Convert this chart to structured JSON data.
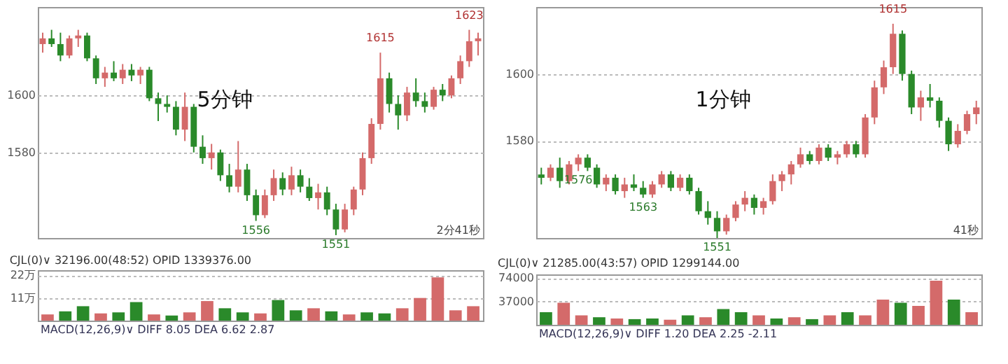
{
  "chart_data": [
    {
      "type": "candlestick",
      "categories": [
        null,
        null,
        null,
        null,
        null,
        null,
        null,
        null,
        null,
        null,
        null,
        null,
        null,
        null,
        null,
        null,
        null,
        null,
        null,
        null,
        null,
        null,
        null,
        null,
        null,
        null,
        null,
        null,
        null,
        null,
        null,
        null,
        null,
        null,
        null,
        null,
        null,
        null,
        null,
        null,
        null,
        null,
        null,
        null,
        null,
        null,
        null,
        null,
        null,
        null
      ],
      "ohlc": [
        [
          1618,
          1622,
          1615,
          1620
        ],
        [
          1620,
          1623,
          1617,
          1618
        ],
        [
          1618,
          1622,
          1612,
          1614
        ],
        [
          1614,
          1621,
          1613,
          1620
        ],
        [
          1620,
          1623,
          1617,
          1621
        ],
        [
          1621,
          1622,
          1612,
          1613
        ],
        [
          1613,
          1614,
          1604,
          1606
        ],
        [
          1606,
          1610,
          1603,
          1608
        ],
        [
          1608,
          1612,
          1605,
          1606
        ],
        [
          1606,
          1611,
          1604,
          1609
        ],
        [
          1609,
          1611,
          1605,
          1607
        ],
        [
          1607,
          1610,
          1604,
          1609
        ],
        [
          1609,
          1610,
          1598,
          1599
        ],
        [
          1599,
          1601,
          1591,
          1597
        ],
        [
          1597,
          1600,
          1594,
          1596
        ],
        [
          1596,
          1598,
          1586,
          1588
        ],
        [
          1588,
          1601,
          1584,
          1596
        ],
        [
          1596,
          1597,
          1580,
          1582
        ],
        [
          1582,
          1586,
          1576,
          1578
        ],
        [
          1578,
          1583,
          1574,
          1580
        ],
        [
          1580,
          1581,
          1570,
          1572
        ],
        [
          1572,
          1576,
          1566,
          1568
        ],
        [
          1568,
          1584,
          1566,
          1574
        ],
        [
          1574,
          1576,
          1563,
          1565
        ],
        [
          1565,
          1567,
          1556,
          1558
        ],
        [
          1558,
          1567,
          1557,
          1565
        ],
        [
          1565,
          1574,
          1563,
          1571
        ],
        [
          1571,
          1573,
          1565,
          1567
        ],
        [
          1567,
          1575,
          1565,
          1572
        ],
        [
          1572,
          1574,
          1566,
          1568
        ],
        [
          1568,
          1571,
          1563,
          1564
        ],
        [
          1564,
          1569,
          1560,
          1566
        ],
        [
          1566,
          1568,
          1558,
          1560
        ],
        [
          1560,
          1562,
          1551,
          1553
        ],
        [
          1553,
          1562,
          1552,
          1560
        ],
        [
          1560,
          1568,
          1558,
          1567
        ],
        [
          1567,
          1580,
          1565,
          1578
        ],
        [
          1578,
          1592,
          1576,
          1590
        ],
        [
          1590,
          1615,
          1588,
          1606
        ],
        [
          1606,
          1608,
          1594,
          1597
        ],
        [
          1597,
          1600,
          1588,
          1593
        ],
        [
          1593,
          1603,
          1591,
          1601
        ],
        [
          1601,
          1606,
          1596,
          1598
        ],
        [
          1598,
          1601,
          1594,
          1596
        ],
        [
          1596,
          1603,
          1595,
          1602
        ],
        [
          1602,
          1604,
          1598,
          1600
        ],
        [
          1600,
          1607,
          1599,
          1606
        ],
        [
          1606,
          1614,
          1604,
          1612
        ],
        [
          1612,
          1623,
          1610,
          1619
        ],
        [
          1619,
          1622,
          1614,
          1620
        ]
      ],
      "colors": [
        "#d46a6a",
        "#2a8a2a",
        "#2a8a2a",
        "#d46a6a",
        "#d46a6a",
        "#2a8a2a",
        "#2a8a2a",
        "#d46a6a",
        "#2a8a2a",
        "#d46a6a",
        "#2a8a2a",
        "#d46a6a",
        "#2a8a2a",
        "#2a8a2a",
        "#2a8a2a",
        "#2a8a2a",
        "#d46a6a",
        "#2a8a2a",
        "#2a8a2a",
        "#d46a6a",
        "#2a8a2a",
        "#2a8a2a",
        "#d46a6a",
        "#2a8a2a",
        "#2a8a2a",
        "#d46a6a",
        "#d46a6a",
        "#2a8a2a",
        "#d46a6a",
        "#2a8a2a",
        "#2a8a2a",
        "#d46a6a",
        "#2a8a2a",
        "#2a8a2a",
        "#d46a6a",
        "#d46a6a",
        "#d46a6a",
        "#d46a6a",
        "#d46a6a",
        "#2a8a2a",
        "#2a8a2a",
        "#d46a6a",
        "#2a8a2a",
        "#2a8a2a",
        "#d46a6a",
        "#2a8a2a",
        "#d46a6a",
        "#d46a6a",
        "#d46a6a",
        "#d46a6a"
      ],
      "value_labels": [
        null,
        null,
        null,
        null,
        null,
        null,
        null,
        null,
        null,
        null,
        null,
        null,
        null,
        null,
        null,
        null,
        null,
        null,
        null,
        null,
        null,
        null,
        null,
        null,
        "1556",
        null,
        null,
        null,
        null,
        null,
        null,
        null,
        null,
        "1551",
        null,
        null,
        null,
        null,
        "1615",
        null,
        null,
        null,
        null,
        null,
        null,
        null,
        null,
        null,
        "1623",
        null
      ],
      "ylim": [
        1550,
        1631
      ],
      "yticks": [
        1580,
        1600
      ],
      "grid": "y",
      "annotations": [
        "5分钟",
        "2分41秒"
      ]
    },
    {
      "type": "bar",
      "categories": [
        null,
        null,
        null,
        null,
        null,
        null,
        null,
        null,
        null,
        null,
        null,
        null,
        null,
        null,
        null,
        null,
        null,
        null,
        null,
        null,
        null,
        null,
        null,
        null,
        null
      ],
      "values": [
        3,
        4.5,
        7,
        3.5,
        4,
        9,
        3,
        2.5,
        4,
        9.5,
        6,
        4,
        3.5,
        10,
        5,
        6,
        4.5,
        3,
        4,
        3.5,
        6,
        11,
        21,
        5,
        7
      ],
      "colors": [
        "#d46a6a",
        "#2a8a2a",
        "#2a8a2a",
        "#d46a6a",
        "#2a8a2a",
        "#2a8a2a",
        "#d46a6a",
        "#2a8a2a",
        "#d46a6a",
        "#d46a6a",
        "#2a8a2a",
        "#2a8a2a",
        "#d46a6a",
        "#2a8a2a",
        "#2a8a2a",
        "#d46a6a",
        "#2a8a2a",
        "#d46a6a",
        "#2a8a2a",
        "#2a8a2a",
        "#d46a6a",
        "#d46a6a",
        "#d46a6a",
        "#d46a6a",
        "#d46a6a"
      ],
      "ylim": [
        0,
        24.5
      ],
      "yticks": [
        {
          "value": 11,
          "label": "11万"
        },
        {
          "value": 22,
          "label": "22万"
        }
      ],
      "grid": "y",
      "title": "CJL(0)∨ 32196.00(48:52) OPID 1339376.00",
      "annotations": [
        "MACD(12,26,9)∨ DIFF 8.05 DEA 6.62 2.87"
      ]
    },
    {
      "type": "candlestick",
      "categories": [
        null,
        null,
        null,
        null,
        null,
        null,
        null,
        null,
        null,
        null,
        null,
        null,
        null,
        null,
        null,
        null,
        null,
        null,
        null,
        null,
        null,
        null,
        null,
        null,
        null,
        null,
        null,
        null,
        null,
        null,
        null,
        null,
        null,
        null,
        null,
        null,
        null,
        null,
        null,
        null,
        null,
        null,
        null,
        null,
        null,
        null,
        null,
        null
      ],
      "ohlc": [
        [
          1570,
          1572,
          1567,
          1569
        ],
        [
          1569,
          1573,
          1568,
          1572
        ],
        [
          1572,
          1575,
          1566,
          1568
        ],
        [
          1568,
          1574,
          1567,
          1573
        ],
        [
          1573,
          1576,
          1571,
          1575
        ],
        [
          1575,
          1576,
          1571,
          1572
        ],
        [
          1572,
          1573,
          1566,
          1567
        ],
        [
          1567,
          1570,
          1565,
          1569
        ],
        [
          1569,
          1570,
          1564,
          1565
        ],
        [
          1565,
          1569,
          1563,
          1567
        ],
        [
          1567,
          1570,
          1565,
          1566
        ],
        [
          1566,
          1568,
          1563,
          1564
        ],
        [
          1564,
          1568,
          1563,
          1567
        ],
        [
          1567,
          1571,
          1566,
          1570
        ],
        [
          1570,
          1571,
          1565,
          1566
        ],
        [
          1566,
          1570,
          1565,
          1569
        ],
        [
          1569,
          1570,
          1564,
          1565
        ],
        [
          1565,
          1566,
          1558,
          1559
        ],
        [
          1559,
          1562,
          1555,
          1557
        ],
        [
          1557,
          1559,
          1551,
          1553
        ],
        [
          1553,
          1558,
          1552,
          1557
        ],
        [
          1557,
          1562,
          1556,
          1561
        ],
        [
          1561,
          1565,
          1559,
          1563
        ],
        [
          1563,
          1564,
          1558,
          1560
        ],
        [
          1560,
          1563,
          1558,
          1562
        ],
        [
          1562,
          1570,
          1561,
          1568
        ],
        [
          1568,
          1571,
          1565,
          1570
        ],
        [
          1570,
          1574,
          1567,
          1573
        ],
        [
          1573,
          1578,
          1572,
          1576
        ],
        [
          1576,
          1577,
          1573,
          1574
        ],
        [
          1574,
          1579,
          1573,
          1578
        ],
        [
          1578,
          1579,
          1574,
          1575
        ],
        [
          1575,
          1577,
          1573,
          1576
        ],
        [
          1576,
          1580,
          1575,
          1579
        ],
        [
          1579,
          1580,
          1575,
          1576
        ],
        [
          1576,
          1588,
          1575,
          1587
        ],
        [
          1587,
          1598,
          1585,
          1596
        ],
        [
          1596,
          1604,
          1594,
          1602
        ],
        [
          1602,
          1615,
          1600,
          1612
        ],
        [
          1612,
          1613,
          1598,
          1600
        ],
        [
          1600,
          1601,
          1588,
          1590
        ],
        [
          1590,
          1595,
          1586,
          1593
        ],
        [
          1593,
          1597,
          1590,
          1592
        ],
        [
          1592,
          1593,
          1584,
          1586
        ],
        [
          1586,
          1587,
          1577,
          1579
        ],
        [
          1579,
          1585,
          1578,
          1583
        ],
        [
          1583,
          1589,
          1582,
          1588
        ],
        [
          1588,
          1592,
          1585,
          1590
        ]
      ],
      "colors": [
        "#2a8a2a",
        "#d46a6a",
        "#2a8a2a",
        "#d46a6a",
        "#d46a6a",
        "#2a8a2a",
        "#2a8a2a",
        "#d46a6a",
        "#2a8a2a",
        "#d46a6a",
        "#2a8a2a",
        "#2a8a2a",
        "#d46a6a",
        "#d46a6a",
        "#2a8a2a",
        "#d46a6a",
        "#2a8a2a",
        "#2a8a2a",
        "#2a8a2a",
        "#2a8a2a",
        "#d46a6a",
        "#d46a6a",
        "#d46a6a",
        "#2a8a2a",
        "#d46a6a",
        "#d46a6a",
        "#d46a6a",
        "#d46a6a",
        "#d46a6a",
        "#2a8a2a",
        "#d46a6a",
        "#2a8a2a",
        "#d46a6a",
        "#d46a6a",
        "#2a8a2a",
        "#d46a6a",
        "#d46a6a",
        "#d46a6a",
        "#d46a6a",
        "#2a8a2a",
        "#2a8a2a",
        "#d46a6a",
        "#2a8a2a",
        "#2a8a2a",
        "#2a8a2a",
        "#d46a6a",
        "#d46a6a",
        "#d46a6a"
      ],
      "value_labels": [
        null,
        null,
        null,
        null,
        "1576",
        null,
        null,
        null,
        null,
        null,
        null,
        "1563",
        null,
        null,
        null,
        null,
        null,
        null,
        null,
        "1551",
        null,
        null,
        null,
        null,
        null,
        null,
        null,
        null,
        null,
        null,
        null,
        null,
        null,
        null,
        null,
        null,
        null,
        null,
        "1615",
        null,
        null,
        null,
        null,
        null,
        null,
        null,
        null,
        null
      ],
      "ylim": [
        1551,
        1620
      ],
      "yticks": [
        1580,
        1600
      ],
      "grid": "y",
      "annotations": [
        "1分钟",
        "41秒"
      ]
    },
    {
      "type": "bar",
      "categories": [
        null,
        null,
        null,
        null,
        null,
        null,
        null,
        null,
        null,
        null,
        null,
        null,
        null,
        null,
        null,
        null,
        null,
        null,
        null,
        null,
        null,
        null,
        null,
        null,
        null
      ],
      "values": [
        20000,
        35000,
        15000,
        12000,
        10000,
        9000,
        10000,
        8000,
        15000,
        12000,
        25000,
        20000,
        15000,
        10000,
        12000,
        9000,
        15000,
        20000,
        15000,
        40000,
        35000,
        30000,
        70000,
        40000,
        20000
      ],
      "colors": [
        "#2a8a2a",
        "#d46a6a",
        "#d46a6a",
        "#2a8a2a",
        "#d46a6a",
        "#2a8a2a",
        "#2a8a2a",
        "#d46a6a",
        "#2a8a2a",
        "#d46a6a",
        "#2a8a2a",
        "#2a8a2a",
        "#d46a6a",
        "#2a8a2a",
        "#d46a6a",
        "#2a8a2a",
        "#d46a6a",
        "#2a8a2a",
        "#d46a6a",
        "#d46a6a",
        "#2a8a2a",
        "#d46a6a",
        "#d46a6a",
        "#2a8a2a",
        "#d46a6a"
      ],
      "ylim": [
        0,
        80000
      ],
      "yticks": [
        37000,
        74000
      ],
      "grid": "y",
      "title": "CJL(0)∨ 21285.00(43:57) OPID 1299144.00",
      "annotations": [
        "MACD(12,26,9)∨ DIFF 1.20 DEA 2.25 -2.11"
      ]
    }
  ]
}
